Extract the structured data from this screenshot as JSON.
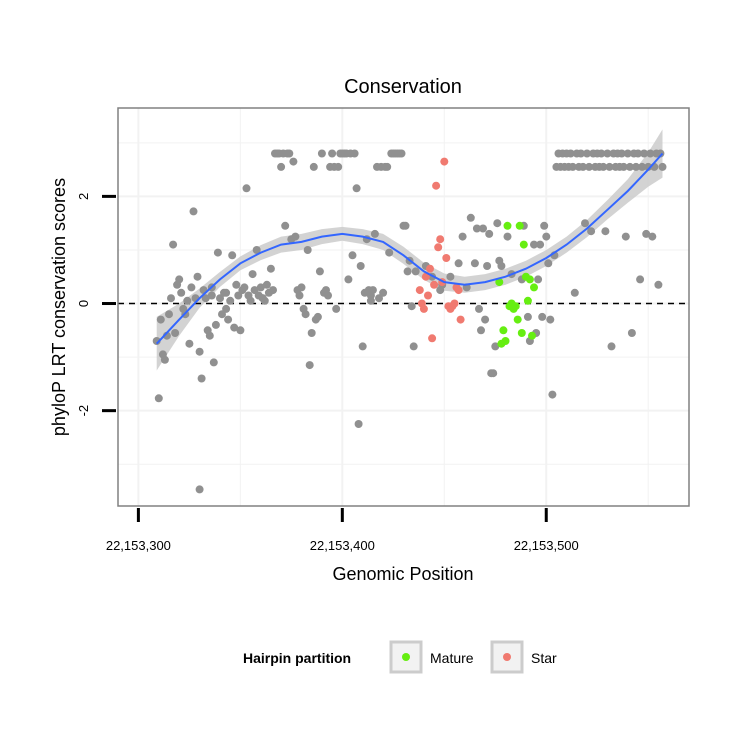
{
  "chart_data": {
    "type": "scatter",
    "title": "Conservation",
    "xlabel": "Genomic Position",
    "ylabel": "phyloP LRT conservation scores",
    "xlim": [
      22153290,
      22153570
    ],
    "ylim": [
      -3.78,
      3.65
    ],
    "x_ticks": [
      {
        "value": 22153300,
        "label": "22,153,300"
      },
      {
        "value": 22153400,
        "label": "22,153,400"
      },
      {
        "value": 22153500,
        "label": "22,153,500"
      }
    ],
    "y_ticks": [
      {
        "value": -2,
        "label": "-2"
      },
      {
        "value": 0,
        "label": "0"
      },
      {
        "value": 2,
        "label": "2"
      }
    ],
    "reference_line_y": 0,
    "colors": {
      "none": "#909090",
      "mature": "#66ee11",
      "star": "#f07a70",
      "smooth": "#3366ff",
      "ribbon": "#c8c8c8",
      "panel_border": "#808080",
      "grid": "#f2f2f2"
    },
    "legend": {
      "title": "Hairpin partition",
      "position": "bottom",
      "entries": [
        {
          "key": "mature",
          "label": "Mature"
        },
        {
          "key": "star",
          "label": "Star"
        }
      ]
    },
    "series": [
      {
        "name": "none",
        "points": [
          [
            22153309,
            -0.7
          ],
          [
            22153310,
            -1.77
          ],
          [
            22153311,
            -0.3
          ],
          [
            22153312,
            -0.95
          ],
          [
            22153313,
            -1.05
          ],
          [
            22153314,
            -0.6
          ],
          [
            22153315,
            -0.2
          ],
          [
            22153316,
            0.1
          ],
          [
            22153317,
            1.1
          ],
          [
            22153318,
            -0.55
          ],
          [
            22153319,
            0.35
          ],
          [
            22153320,
            0.45
          ],
          [
            22153321,
            0.2
          ],
          [
            22153322,
            -0.1
          ],
          [
            22153323,
            -0.2
          ],
          [
            22153324,
            0.05
          ],
          [
            22153325,
            -0.75
          ],
          [
            22153326,
            0.3
          ],
          [
            22153327,
            1.72
          ],
          [
            22153328,
            0.1
          ],
          [
            22153329,
            0.5
          ],
          [
            22153330,
            -0.9
          ],
          [
            22153331,
            -1.4
          ],
          [
            22153332,
            0.25
          ],
          [
            22153333,
            0.1
          ],
          [
            22153334,
            -0.5
          ],
          [
            22153335,
            -0.6
          ],
          [
            22153336,
            0.3
          ],
          [
            22153337,
            -1.1
          ],
          [
            22153338,
            -0.4
          ],
          [
            22153339,
            0.95
          ],
          [
            22153340,
            0.1
          ],
          [
            22153341,
            -0.2
          ],
          [
            22153342,
            0.2
          ],
          [
            22153343,
            -0.1
          ],
          [
            22153344,
            -0.3
          ],
          [
            22153345,
            0.05
          ],
          [
            22153346,
            0.9
          ],
          [
            22153347,
            -0.45
          ],
          [
            22153348,
            0.35
          ],
          [
            22153349,
            0.15
          ],
          [
            22153350,
            -0.5
          ],
          [
            22153351,
            0.25
          ],
          [
            22153352,
            0.3
          ],
          [
            22153353,
            2.15
          ],
          [
            22153354,
            0.15
          ],
          [
            22153355,
            0.05
          ],
          [
            22153356,
            0.55
          ],
          [
            22153357,
            0.25
          ],
          [
            22153358,
            1.0
          ],
          [
            22153359,
            0.15
          ],
          [
            22153360,
            0.3
          ],
          [
            22153361,
            0.1
          ],
          [
            22153362,
            0.05
          ],
          [
            22153363,
            0.35
          ],
          [
            22153364,
            0.2
          ],
          [
            22153365,
            0.65
          ],
          [
            22153366,
            0.25
          ],
          [
            22153367,
            2.8
          ],
          [
            22153368,
            2.8
          ],
          [
            22153369,
            2.8
          ],
          [
            22153370,
            2.55
          ],
          [
            22153371,
            2.8
          ],
          [
            22153372,
            1.45
          ],
          [
            22153373,
            2.8
          ],
          [
            22153374,
            2.8
          ],
          [
            22153375,
            1.2
          ],
          [
            22153376,
            2.65
          ],
          [
            22153377,
            1.25
          ],
          [
            22153378,
            0.25
          ],
          [
            22153379,
            0.15
          ],
          [
            22153380,
            0.3
          ],
          [
            22153381,
            -0.1
          ],
          [
            22153382,
            -0.2
          ],
          [
            22153383,
            1.0
          ],
          [
            22153384,
            -1.15
          ],
          [
            22153385,
            -0.55
          ],
          [
            22153386,
            2.55
          ],
          [
            22153387,
            -0.3
          ],
          [
            22153388,
            -0.25
          ],
          [
            22153389,
            0.6
          ],
          [
            22153390,
            2.8
          ],
          [
            22153391,
            0.2
          ],
          [
            22153392,
            0.25
          ],
          [
            22153393,
            0.15
          ],
          [
            22153394,
            2.55
          ],
          [
            22153395,
            2.8
          ],
          [
            22153396,
            2.55
          ],
          [
            22153397,
            -0.1
          ],
          [
            22153398,
            2.55
          ],
          [
            22153399,
            2.8
          ],
          [
            22153400,
            2.8
          ],
          [
            22153401,
            2.8
          ],
          [
            22153402,
            2.8
          ],
          [
            22153403,
            0.45
          ],
          [
            22153404,
            2.8
          ],
          [
            22153405,
            0.9
          ],
          [
            22153406,
            2.8
          ],
          [
            22153407,
            2.15
          ],
          [
            22153408,
            -2.25
          ],
          [
            22153409,
            0.7
          ],
          [
            22153410,
            -0.8
          ],
          [
            22153411,
            0.2
          ],
          [
            22153412,
            1.2
          ],
          [
            22153413,
            0.25
          ],
          [
            22153414,
            0.15
          ],
          [
            22153415,
            0.25
          ],
          [
            22153416,
            1.3
          ],
          [
            22153417,
            2.55
          ],
          [
            22153418,
            0.1
          ],
          [
            22153419,
            2.55
          ],
          [
            22153420,
            0.2
          ],
          [
            22153421,
            2.55
          ],
          [
            22153422,
            2.55
          ],
          [
            22153423,
            0.95
          ],
          [
            22153424,
            2.8
          ],
          [
            22153425,
            2.8
          ],
          [
            22153426,
            2.8
          ],
          [
            22153427,
            2.8
          ],
          [
            22153428,
            2.8
          ],
          [
            22153429,
            2.8
          ],
          [
            22153430,
            1.45
          ],
          [
            22153431,
            1.45
          ],
          [
            22153432,
            0.6
          ],
          [
            22153433,
            0.8
          ],
          [
            22153434,
            -0.05
          ],
          [
            22153435,
            -0.8
          ],
          [
            22153436,
            0.6
          ],
          [
            22153441,
            0.7
          ],
          [
            22153444,
            0.5
          ],
          [
            22153449,
            0.35
          ],
          [
            22153453,
            0.5
          ],
          [
            22153457,
            0.75
          ],
          [
            22153459,
            1.25
          ],
          [
            22153461,
            0.3
          ],
          [
            22153463,
            1.6
          ],
          [
            22153465,
            0.75
          ],
          [
            22153466,
            1.4
          ],
          [
            22153467,
            -0.1
          ],
          [
            22153468,
            -0.5
          ],
          [
            22153469,
            1.4
          ],
          [
            22153470,
            -0.3
          ],
          [
            22153471,
            0.7
          ],
          [
            22153472,
            1.3
          ],
          [
            22153473,
            -1.3
          ],
          [
            22153474,
            -1.3
          ],
          [
            22153475,
            -0.8
          ],
          [
            22153476,
            1.5
          ],
          [
            22153477,
            0.8
          ],
          [
            22153478,
            0.7
          ],
          [
            22153481,
            1.25
          ],
          [
            22153483,
            0.55
          ],
          [
            22153488,
            0.45
          ],
          [
            22153489,
            1.45
          ],
          [
            22153491,
            -0.25
          ],
          [
            22153492,
            -0.7
          ],
          [
            22153494,
            1.1
          ],
          [
            22153495,
            -0.55
          ],
          [
            22153496,
            0.45
          ],
          [
            22153497,
            1.1
          ],
          [
            22153498,
            -0.25
          ],
          [
            22153499,
            1.45
          ],
          [
            22153500,
            1.25
          ],
          [
            22153501,
            0.75
          ],
          [
            22153502,
            -0.3
          ],
          [
            22153503,
            -1.7
          ],
          [
            22153504,
            0.9
          ],
          [
            22153505,
            2.55
          ],
          [
            22153506,
            2.8
          ],
          [
            22153507,
            2.55
          ],
          [
            22153508,
            2.8
          ],
          [
            22153509,
            2.55
          ],
          [
            22153510,
            2.8
          ],
          [
            22153511,
            2.55
          ],
          [
            22153512,
            2.8
          ],
          [
            22153513,
            2.55
          ],
          [
            22153514,
            0.2
          ],
          [
            22153515,
            2.8
          ],
          [
            22153516,
            2.55
          ],
          [
            22153517,
            2.8
          ],
          [
            22153518,
            2.55
          ],
          [
            22153519,
            1.5
          ],
          [
            22153520,
            2.8
          ],
          [
            22153521,
            2.55
          ],
          [
            22153522,
            1.35
          ],
          [
            22153523,
            2.8
          ],
          [
            22153524,
            2.55
          ],
          [
            22153525,
            2.8
          ],
          [
            22153526,
            2.55
          ],
          [
            22153527,
            2.8
          ],
          [
            22153528,
            2.55
          ],
          [
            22153529,
            1.35
          ],
          [
            22153530,
            2.8
          ],
          [
            22153531,
            2.55
          ],
          [
            22153532,
            -0.8
          ],
          [
            22153533,
            2.8
          ],
          [
            22153534,
            2.55
          ],
          [
            22153535,
            2.8
          ],
          [
            22153536,
            2.55
          ],
          [
            22153537,
            2.8
          ],
          [
            22153538,
            2.55
          ],
          [
            22153539,
            1.25
          ],
          [
            22153540,
            2.8
          ],
          [
            22153541,
            2.55
          ],
          [
            22153542,
            -0.55
          ],
          [
            22153543,
            2.8
          ],
          [
            22153544,
            2.55
          ],
          [
            22153545,
            2.8
          ],
          [
            22153546,
            0.45
          ],
          [
            22153547,
            2.55
          ],
          [
            22153548,
            2.8
          ],
          [
            22153549,
            1.3
          ],
          [
            22153550,
            2.55
          ],
          [
            22153551,
            2.8
          ],
          [
            22153552,
            1.25
          ],
          [
            22153553,
            2.55
          ],
          [
            22153554,
            2.8
          ],
          [
            22153555,
            0.35
          ],
          [
            22153556,
            2.8
          ],
          [
            22153557,
            2.55
          ],
          [
            22153336,
            0.15
          ],
          [
            22153343,
            0.2
          ],
          [
            22153361,
            0.1
          ],
          [
            22153414,
            0.05
          ],
          [
            22153448,
            0.25
          ],
          [
            22153330,
            -3.47
          ]
        ]
      },
      {
        "name": "star",
        "points": [
          [
            22153438,
            0.25
          ],
          [
            22153439,
            0.0
          ],
          [
            22153440,
            -0.1
          ],
          [
            22153441,
            0.5
          ],
          [
            22153442,
            0.15
          ],
          [
            22153443,
            0.65
          ],
          [
            22153444,
            -0.65
          ],
          [
            22153445,
            0.35
          ],
          [
            22153446,
            2.2
          ],
          [
            22153447,
            1.05
          ],
          [
            22153448,
            1.2
          ],
          [
            22153449,
            0.4
          ],
          [
            22153450,
            2.65
          ],
          [
            22153451,
            0.85
          ],
          [
            22153452,
            -0.05
          ],
          [
            22153453,
            -0.1
          ],
          [
            22153454,
            -0.05
          ],
          [
            22153455,
            0.0
          ],
          [
            22153456,
            0.3
          ],
          [
            22153457,
            0.25
          ],
          [
            22153458,
            -0.3
          ]
        ]
      },
      {
        "name": "mature",
        "points": [
          [
            22153477,
            0.4
          ],
          [
            22153478,
            -0.75
          ],
          [
            22153479,
            -0.5
          ],
          [
            22153480,
            -0.7
          ],
          [
            22153481,
            1.45
          ],
          [
            22153482,
            -0.05
          ],
          [
            22153483,
            0.0
          ],
          [
            22153484,
            -0.1
          ],
          [
            22153485,
            -0.05
          ],
          [
            22153486,
            -0.3
          ],
          [
            22153487,
            1.45
          ],
          [
            22153488,
            -0.55
          ],
          [
            22153489,
            1.1
          ],
          [
            22153490,
            0.5
          ],
          [
            22153491,
            0.05
          ],
          [
            22153492,
            0.45
          ],
          [
            22153493,
            -0.6
          ],
          [
            22153494,
            0.3
          ]
        ]
      }
    ],
    "smooth_curve": [
      [
        22153309,
        -0.75
      ],
      [
        22153320,
        -0.3
      ],
      [
        22153330,
        0.1
      ],
      [
        22153340,
        0.45
      ],
      [
        22153350,
        0.75
      ],
      [
        22153360,
        0.95
      ],
      [
        22153370,
        1.1
      ],
      [
        22153380,
        1.15
      ],
      [
        22153390,
        1.25
      ],
      [
        22153400,
        1.3
      ],
      [
        22153410,
        1.25
      ],
      [
        22153420,
        1.15
      ],
      [
        22153430,
        0.9
      ],
      [
        22153440,
        0.6
      ],
      [
        22153450,
        0.4
      ],
      [
        22153460,
        0.35
      ],
      [
        22153470,
        0.4
      ],
      [
        22153480,
        0.5
      ],
      [
        22153490,
        0.65
      ],
      [
        22153500,
        0.85
      ],
      [
        22153510,
        1.1
      ],
      [
        22153520,
        1.4
      ],
      [
        22153530,
        1.75
      ],
      [
        22153540,
        2.1
      ],
      [
        22153550,
        2.5
      ],
      [
        22153557,
        2.8
      ]
    ],
    "ribbon_halfwidth": [
      0.5,
      0.3,
      0.18,
      0.14,
      0.13,
      0.14,
      0.15,
      0.15,
      0.14,
      0.13,
      0.14,
      0.15,
      0.16,
      0.16,
      0.16,
      0.15,
      0.15,
      0.15,
      0.15,
      0.15,
      0.15,
      0.16,
      0.18,
      0.22,
      0.32,
      0.45
    ]
  }
}
